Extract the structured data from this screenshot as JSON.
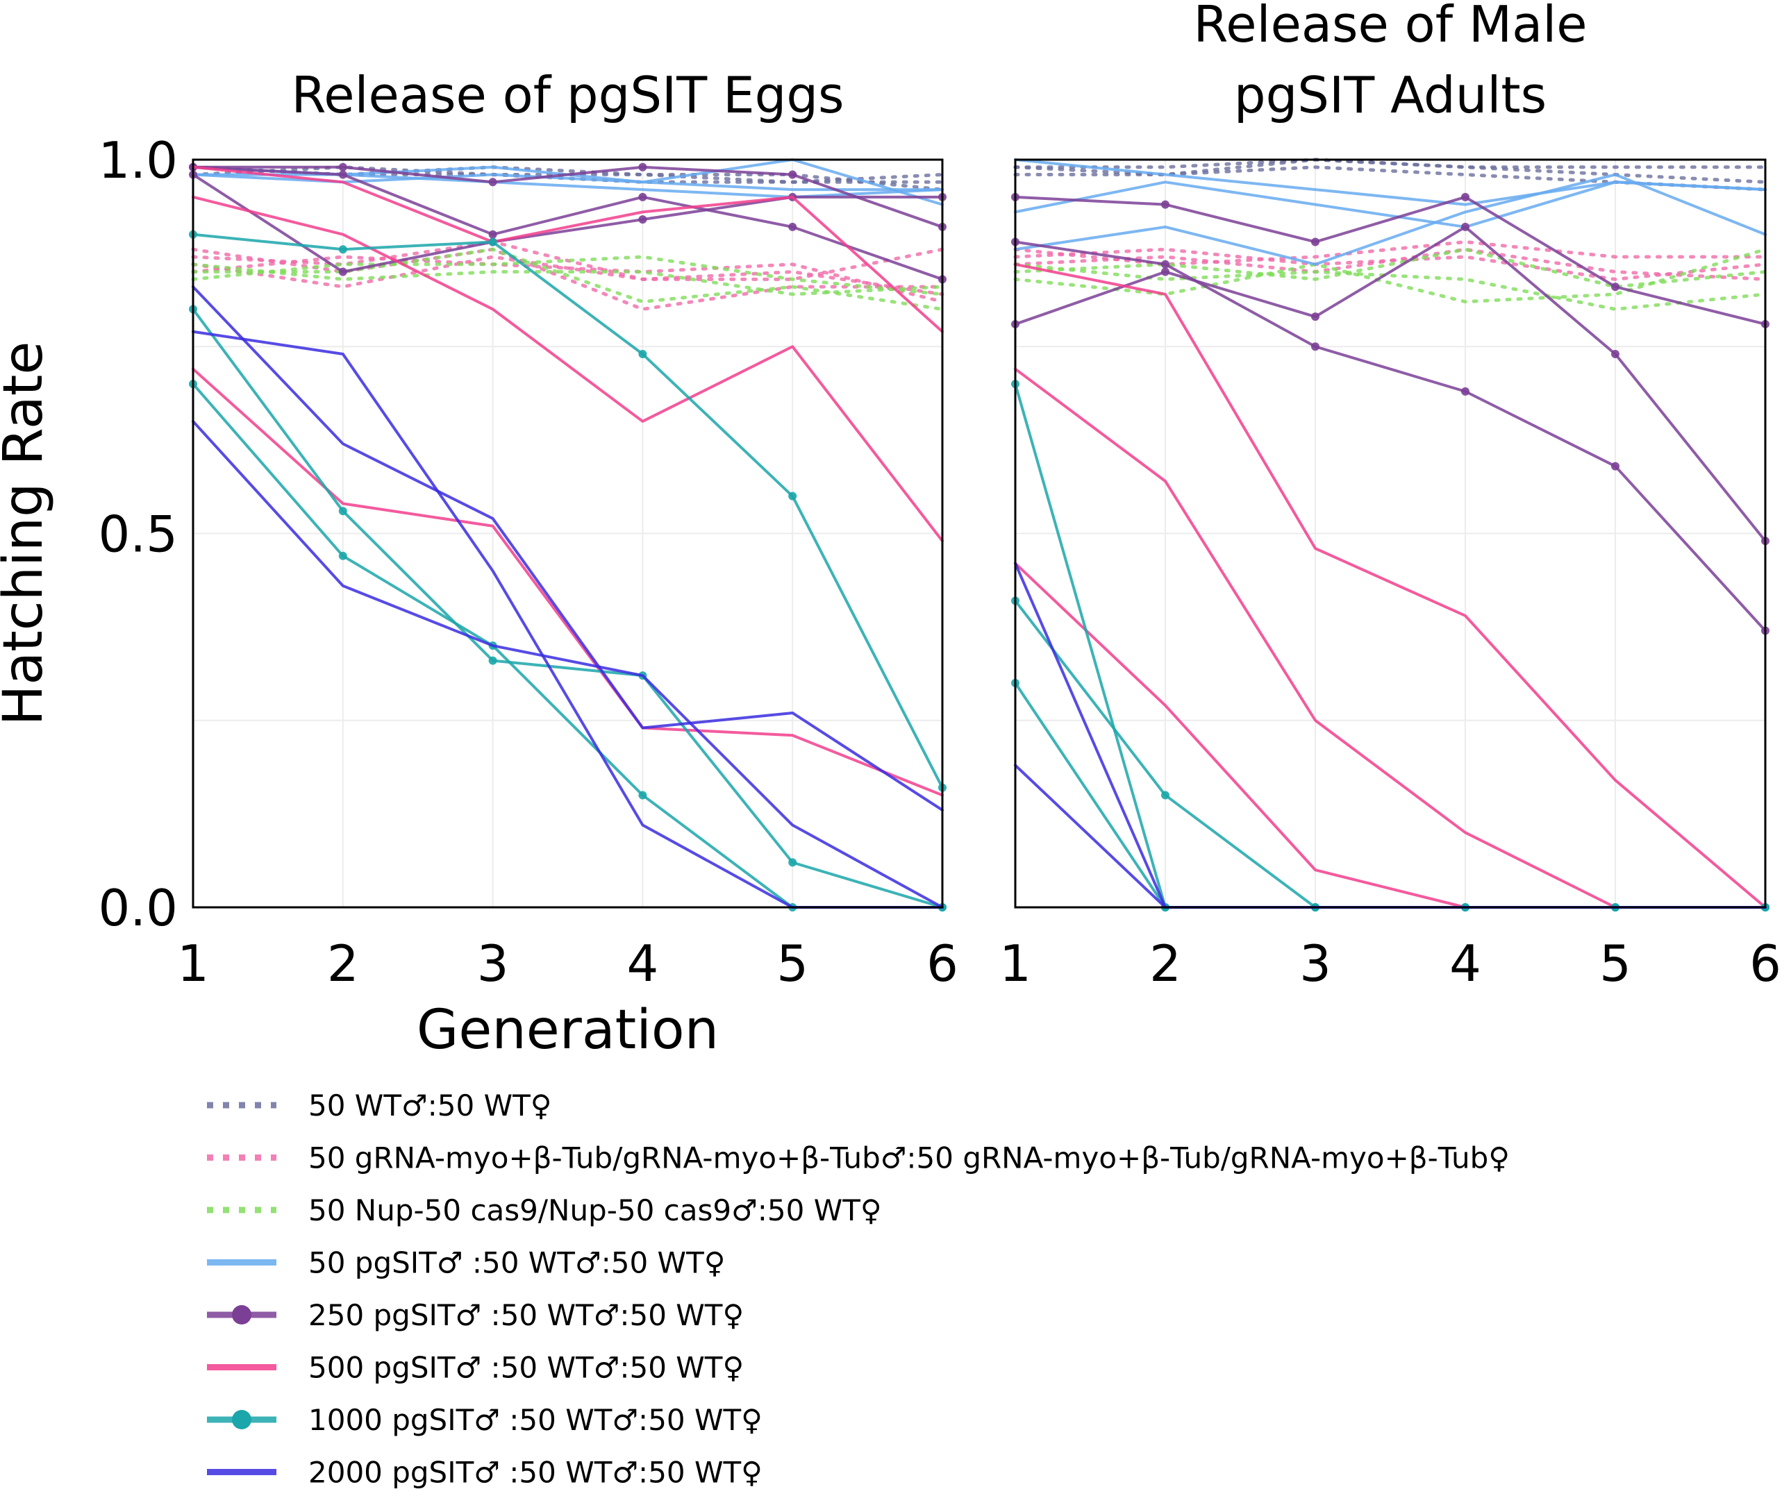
{
  "chart_data": {
    "type": "line",
    "x": [
      1,
      2,
      3,
      4,
      5,
      6
    ],
    "xlabel": "Generation",
    "ylabel": "Hatching Rate",
    "ylim": [
      0,
      1
    ],
    "xlim": [
      1,
      6
    ],
    "y_ticks": [
      "0.0",
      "0.5",
      "1.0"
    ],
    "x_ticks": [
      "1",
      "2",
      "3",
      "4",
      "5",
      "6"
    ],
    "grid": true,
    "legend_position": "bottom",
    "legend": [
      {
        "label": "50 WT♂:50 WT♀",
        "color": "#6b6f9e",
        "style": "dotted",
        "marker": false
      },
      {
        "label": "50 gRNA-myo+β-Tub/gRNA-myo+β-Tub♂:50 gRNA-myo+β-Tub/gRNA-myo+β-Tub♀",
        "color": "#f06aa8",
        "style": "dotted",
        "marker": false
      },
      {
        "label": "50 Nup-50 cas9/Nup-50 cas9♂:50 WT♀",
        "color": "#7fdc5a",
        "style": "dotted",
        "marker": false
      },
      {
        "label": "50 pgSIT♂ :50 WT♂:50 WT♀",
        "color": "#66aaf0",
        "style": "solid",
        "marker": false
      },
      {
        "label": "250 pgSIT♂ :50 WT♂:50 WT♀",
        "color": "#7b3f96",
        "style": "solid",
        "marker": true
      },
      {
        "label": "500 pgSIT♂ :50 WT♂:50 WT♀",
        "color": "#f23d8c",
        "style": "solid",
        "marker": false
      },
      {
        "label": "1000 pgSIT♂ :50 WT♂:50 WT♀",
        "color": "#1aa6aa",
        "style": "solid",
        "marker": true
      },
      {
        "label": "2000 pgSIT♂ :50 WT♂:50 WT♀",
        "color": "#3a2be0",
        "style": "solid",
        "marker": false
      }
    ],
    "panels": [
      {
        "title": "Release of pgSIT Eggs",
        "series": [
          {
            "group": 0,
            "values": [
              0.99,
              0.98,
              0.98,
              0.97,
              0.97,
              0.98
            ]
          },
          {
            "group": 0,
            "values": [
              0.98,
              0.99,
              0.98,
              0.98,
              0.97,
              0.97
            ]
          },
          {
            "group": 0,
            "values": [
              0.99,
              0.98,
              0.99,
              0.98,
              0.98,
              0.96
            ]
          },
          {
            "group": 1,
            "values": [
              0.86,
              0.83,
              0.87,
              0.84,
              0.85,
              0.82
            ]
          },
          {
            "group": 1,
            "values": [
              0.88,
              0.85,
              0.88,
              0.8,
              0.83,
              0.83
            ]
          },
          {
            "group": 1,
            "values": [
              0.85,
              0.87,
              0.86,
              0.85,
              0.86,
              0.81
            ]
          },
          {
            "group": 1,
            "values": [
              0.87,
              0.86,
              0.89,
              0.84,
              0.84,
              0.88
            ]
          },
          {
            "group": 2,
            "values": [
              0.84,
              0.86,
              0.86,
              0.87,
              0.84,
              0.82
            ]
          },
          {
            "group": 2,
            "values": [
              0.85,
              0.85,
              0.88,
              0.81,
              0.83,
              0.8
            ]
          },
          {
            "group": 2,
            "values": [
              0.86,
              0.84,
              0.85,
              0.85,
              0.82,
              0.83
            ]
          },
          {
            "group": 3,
            "values": [
              0.98,
              0.97,
              0.98,
              0.97,
              1.0,
              0.94
            ]
          },
          {
            "group": 3,
            "values": [
              0.99,
              0.98,
              0.99,
              0.97,
              0.96,
              0.96
            ]
          },
          {
            "group": 3,
            "values": [
              0.98,
              0.98,
              0.97,
              0.96,
              0.95,
              0.96
            ]
          },
          {
            "group": 4,
            "values": [
              0.99,
              0.99,
              0.97,
              0.99,
              0.98,
              0.91
            ]
          },
          {
            "group": 4,
            "values": [
              0.99,
              0.98,
              0.9,
              0.95,
              0.91,
              0.84
            ]
          },
          {
            "group": 4,
            "values": [
              0.98,
              0.85,
              0.89,
              0.92,
              0.95,
              0.95
            ]
          },
          {
            "group": 5,
            "values": [
              0.95,
              0.9,
              0.8,
              0.65,
              0.75,
              0.49
            ]
          },
          {
            "group": 5,
            "values": [
              0.99,
              0.97,
              0.89,
              0.93,
              0.95,
              0.77
            ]
          },
          {
            "group": 5,
            "values": [
              0.72,
              0.54,
              0.51,
              0.24,
              0.23,
              0.15
            ]
          },
          {
            "group": 6,
            "values": [
              0.9,
              0.88,
              0.89,
              0.74,
              0.55,
              0.16
            ]
          },
          {
            "group": 6,
            "values": [
              0.8,
              0.53,
              0.33,
              0.31,
              0.06,
              0.0
            ]
          },
          {
            "group": 6,
            "values": [
              0.7,
              0.47,
              0.35,
              0.15,
              0.0,
              0.0
            ]
          },
          {
            "group": 7,
            "values": [
              0.77,
              0.74,
              0.45,
              0.11,
              0.0,
              0.0
            ]
          },
          {
            "group": 7,
            "values": [
              0.83,
              0.62,
              0.52,
              0.24,
              0.26,
              0.13
            ]
          },
          {
            "group": 7,
            "values": [
              0.65,
              0.43,
              0.35,
              0.31,
              0.11,
              0.0
            ]
          }
        ]
      },
      {
        "title": "Release of Male pgSIT Adults",
        "series": [
          {
            "group": 0,
            "values": [
              0.99,
              0.98,
              1.0,
              0.99,
              0.99,
              0.99
            ]
          },
          {
            "group": 0,
            "values": [
              0.98,
              0.98,
              0.99,
              0.98,
              0.97,
              0.96
            ]
          },
          {
            "group": 0,
            "values": [
              0.99,
              0.99,
              1.0,
              0.99,
              0.98,
              0.97
            ]
          },
          {
            "group": 1,
            "values": [
              0.86,
              0.87,
              0.85,
              0.88,
              0.85,
              0.84
            ]
          },
          {
            "group": 1,
            "values": [
              0.87,
              0.88,
              0.86,
              0.87,
              0.84,
              0.86
            ]
          },
          {
            "group": 1,
            "values": [
              0.88,
              0.86,
              0.87,
              0.89,
              0.87,
              0.87
            ]
          },
          {
            "group": 2,
            "values": [
              0.85,
              0.86,
              0.84,
              0.88,
              0.83,
              0.85
            ]
          },
          {
            "group": 2,
            "values": [
              0.84,
              0.82,
              0.86,
              0.81,
              0.82,
              0.88
            ]
          },
          {
            "group": 2,
            "values": [
              0.86,
              0.84,
              0.85,
              0.84,
              0.8,
              0.82
            ]
          },
          {
            "group": 3,
            "values": [
              1.0,
              0.98,
              0.96,
              0.94,
              0.97,
              0.96
            ]
          },
          {
            "group": 3,
            "values": [
              0.93,
              0.97,
              0.94,
              0.91,
              0.97,
              0.96
            ]
          },
          {
            "group": 3,
            "values": [
              0.88,
              0.91,
              0.86,
              0.93,
              0.98,
              0.9
            ]
          },
          {
            "group": 4,
            "values": [
              0.95,
              0.94,
              0.89,
              0.95,
              0.83,
              0.78
            ]
          },
          {
            "group": 4,
            "values": [
              0.78,
              0.85,
              0.79,
              0.91,
              0.74,
              0.49
            ]
          },
          {
            "group": 4,
            "values": [
              0.89,
              0.86,
              0.75,
              0.69,
              0.59,
              0.37
            ]
          },
          {
            "group": 5,
            "values": [
              0.86,
              0.82,
              0.48,
              0.39,
              0.17,
              0.0
            ]
          },
          {
            "group": 5,
            "values": [
              0.72,
              0.57,
              0.25,
              0.1,
              0.0,
              0.0
            ]
          },
          {
            "group": 5,
            "values": [
              0.46,
              0.27,
              0.05,
              0.0,
              0.0,
              0.0
            ]
          },
          {
            "group": 6,
            "values": [
              0.7,
              0.0,
              0.0,
              0.0,
              0.0,
              0.0
            ]
          },
          {
            "group": 6,
            "values": [
              0.41,
              0.15,
              0.0,
              0.0,
              0.0,
              0.0
            ]
          },
          {
            "group": 6,
            "values": [
              0.3,
              0.0,
              0.0,
              0.0,
              0.0,
              0.0
            ]
          },
          {
            "group": 7,
            "values": [
              0.46,
              0.0,
              0.0,
              0.0,
              0.0,
              0.0
            ]
          },
          {
            "group": 7,
            "values": [
              0.19,
              0.0,
              0.0,
              0.0,
              0.0,
              0.0
            ]
          }
        ]
      }
    ]
  }
}
